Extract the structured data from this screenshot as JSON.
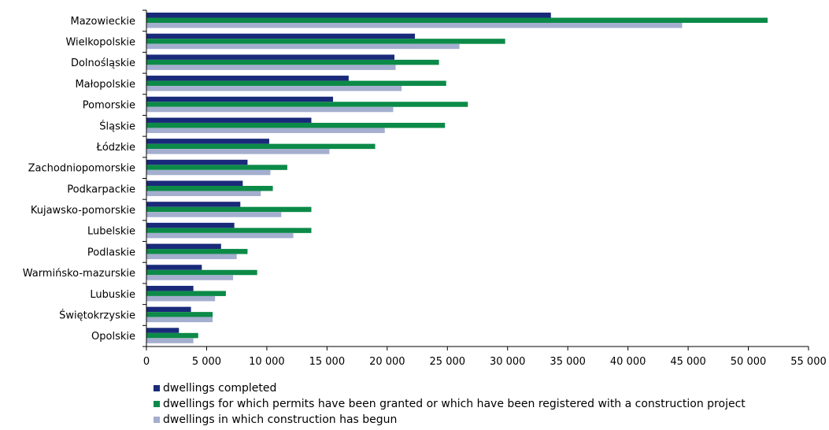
{
  "colors": {
    "completed": "#1a2a7a",
    "permits": "#0c8a48",
    "begun": "#a4aece"
  },
  "chart_data": {
    "type": "bar",
    "orientation": "horizontal",
    "categories": [
      "Mazowieckie",
      "Wielkopolskie",
      "Dolnośląskie",
      "Małopolskie",
      "Pomorskie",
      "Śląskie",
      "Łódzkie",
      "Zachodniopomorskie",
      "Podkarpackie",
      "Kujawsko-pomorskie",
      "Lubelskie",
      "Podlaskie",
      "Warmińsko-mazurskie",
      "Lubuskie",
      "Świętokrzyskie",
      "Opolskie"
    ],
    "series": [
      {
        "name": "dwellings completed",
        "values": [
          33600,
          22300,
          20600,
          16800,
          15500,
          13700,
          10200,
          8400,
          8000,
          7800,
          7300,
          6200,
          4600,
          3900,
          3700,
          2700
        ]
      },
      {
        "name": "dwellings for which permits have been granted or which have been registered with a construction project",
        "values": [
          51600,
          29800,
          24300,
          24900,
          26700,
          24800,
          19000,
          11700,
          10500,
          13700,
          13700,
          8400,
          9200,
          6600,
          5500,
          4300
        ]
      },
      {
        "name": "dwellings in which construction has begun",
        "values": [
          44500,
          26000,
          20700,
          21200,
          20500,
          19800,
          15200,
          10300,
          9500,
          11200,
          12200,
          7500,
          7200,
          5700,
          5500,
          3900
        ]
      }
    ],
    "xlim": [
      0,
      55000
    ],
    "xticks": [
      0,
      5000,
      10000,
      15000,
      20000,
      25000,
      30000,
      35000,
      40000,
      45000,
      50000,
      55000
    ],
    "xtick_labels": [
      "0",
      "5 000",
      "10 000",
      "15 000",
      "20 000",
      "25 000",
      "30 000",
      "35 000",
      "40 000",
      "45 000",
      "50 000",
      "55 000"
    ],
    "grid": false,
    "legend_position": "bottom"
  }
}
